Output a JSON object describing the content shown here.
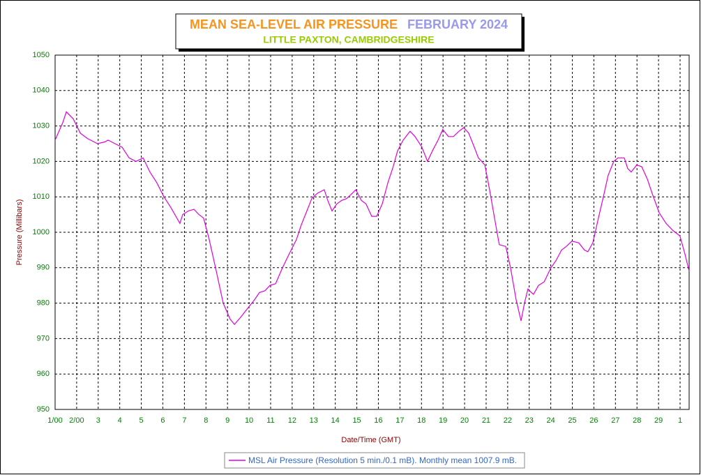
{
  "chart_data": {
    "type": "line",
    "title": "MEAN SEA-LEVEL AIR PRESSURE",
    "period": "FEBRUARY 2024",
    "subtitle": "LITTLE PAXTON, CAMBRIDGESHIRE",
    "x_label": "Date/Time (GMT)",
    "y_label": "Pressure (Millibars)",
    "xlim": [
      0,
      29.42
    ],
    "ylim": [
      950,
      1050
    ],
    "xticks": [
      {
        "value": 0,
        "label": "1/00"
      },
      {
        "value": 1,
        "label": "2/00"
      },
      {
        "value": 2,
        "label": "3"
      },
      {
        "value": 3,
        "label": "4"
      },
      {
        "value": 4,
        "label": "5"
      },
      {
        "value": 5,
        "label": "6"
      },
      {
        "value": 6,
        "label": "7"
      },
      {
        "value": 7,
        "label": "8"
      },
      {
        "value": 8,
        "label": "9"
      },
      {
        "value": 9,
        "label": "10"
      },
      {
        "value": 10,
        "label": "11"
      },
      {
        "value": 11,
        "label": "12"
      },
      {
        "value": 12,
        "label": "13"
      },
      {
        "value": 13,
        "label": "14"
      },
      {
        "value": 14,
        "label": "15"
      },
      {
        "value": 15,
        "label": "16"
      },
      {
        "value": 16,
        "label": "17"
      },
      {
        "value": 17,
        "label": "18"
      },
      {
        "value": 18,
        "label": "19"
      },
      {
        "value": 19,
        "label": "20"
      },
      {
        "value": 20,
        "label": "21"
      },
      {
        "value": 21,
        "label": "22"
      },
      {
        "value": 22,
        "label": "23"
      },
      {
        "value": 23,
        "label": "24"
      },
      {
        "value": 24,
        "label": "25"
      },
      {
        "value": 25,
        "label": "26"
      },
      {
        "value": 26,
        "label": "27"
      },
      {
        "value": 27,
        "label": "28"
      },
      {
        "value": 28,
        "label": "29"
      },
      {
        "value": 29,
        "label": "1"
      }
    ],
    "yticks": [
      950,
      960,
      970,
      980,
      990,
      1000,
      1010,
      1020,
      1030,
      1040,
      1050
    ],
    "grid": true,
    "x": [
      0,
      0.36,
      0.52,
      0.84,
      1.17,
      1.49,
      1.97,
      2.3,
      2.46,
      2.78,
      3.11,
      3.43,
      3.75,
      4.08,
      4.4,
      4.72,
      5.05,
      5.37,
      5.79,
      5.92,
      6.18,
      6.44,
      6.67,
      6.89,
      7.15,
      7.48,
      7.8,
      8.12,
      8.32,
      8.61,
      8.93,
      9.26,
      9.48,
      9.74,
      9.97,
      10.23,
      10.55,
      10.87,
      11.2,
      11.42,
      11.68,
      11.91,
      12.17,
      12.49,
      12.65,
      12.85,
      13.07,
      13.3,
      13.53,
      13.79,
      13.95,
      14.21,
      14.43,
      14.69,
      14.92,
      15.18,
      15.44,
      15.66,
      15.89,
      16.15,
      16.47,
      16.7,
      17.02,
      17.28,
      17.51,
      17.77,
      17.99,
      18.25,
      18.48,
      18.74,
      18.96,
      19.19,
      19.45,
      19.64,
      19.94,
      20.16,
      20.42,
      20.61,
      20.91,
      21.13,
      21.39,
      21.62,
      21.78,
      21.94,
      22.1,
      22.2,
      22.43,
      22.69,
      23.01,
      23.24,
      23.5,
      23.72,
      23.98,
      24.3,
      24.56,
      24.72,
      24.95,
      25.21,
      25.44,
      25.66,
      25.92,
      26.12,
      26.41,
      26.57,
      26.73,
      26.99,
      27.22,
      27.48,
      27.7,
      28.03,
      28.35,
      28.67,
      28.99,
      29.22,
      29.42
    ],
    "series": [
      {
        "name": "MSL Air Pressure (Resolution 5 min./0.1 mB). Monthly mean 1007.9 mB.",
        "color": "#e000e0",
        "values": [
          1026,
          1031,
          1034,
          1032,
          1028,
          1026.5,
          1025,
          1025.5,
          1026,
          1025,
          1024,
          1021,
          1020,
          1021,
          1017,
          1014,
          1010,
          1007,
          1002.5,
          1005,
          1006,
          1006.5,
          1005,
          1004,
          998,
          989,
          980,
          975.5,
          974,
          976,
          978.5,
          981,
          983,
          983.5,
          985,
          985.5,
          990,
          994,
          998,
          1002,
          1006,
          1009.5,
          1011,
          1012,
          1009,
          1006,
          1008,
          1009,
          1009.5,
          1011,
          1012,
          1009,
          1008,
          1004.5,
          1004.5,
          1008,
          1014,
          1018,
          1023,
          1026,
          1028.5,
          1027,
          1024,
          1020,
          1023,
          1026,
          1029,
          1027,
          1027,
          1028.5,
          1029.5,
          1028,
          1024,
          1021,
          1019,
          1012,
          1003,
          996.5,
          996,
          990,
          981,
          975,
          980,
          984,
          983,
          982.5,
          985,
          986,
          990,
          992,
          995,
          996,
          997.5,
          997,
          995,
          994.5,
          997,
          1004,
          1010,
          1016,
          1020,
          1021,
          1021,
          1018,
          1017,
          1019,
          1018.5,
          1015,
          1011,
          1005.5,
          1002.5,
          1000.5,
          999,
          994,
          989
        ]
      }
    ]
  }
}
